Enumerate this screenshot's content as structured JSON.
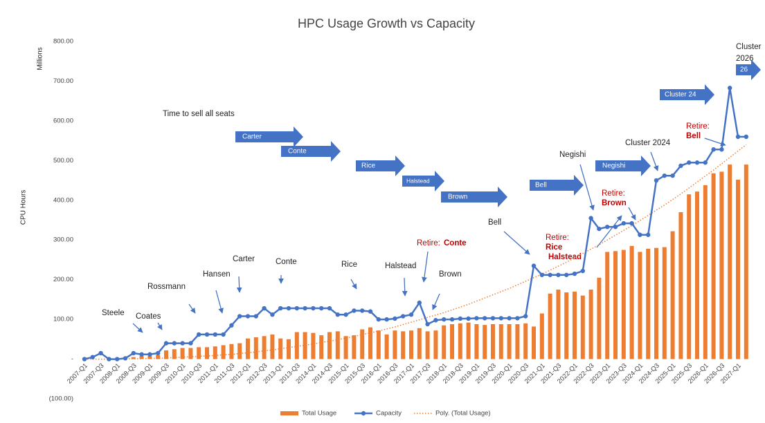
{
  "chart_data": {
    "type": "combo",
    "title": "HPC Usage Growth vs Capacity",
    "ylabel": "CPU Hours",
    "yunit": "Millions",
    "categories": [
      "2007-Q1",
      null,
      "2007-Q3",
      null,
      "2008-Q1",
      null,
      "2008-Q3",
      null,
      "2009-Q1",
      null,
      "2009-Q3",
      null,
      "2010-Q1",
      null,
      "2010-Q3",
      null,
      "2011-Q1",
      null,
      "2011-Q3",
      null,
      "2012-Q1",
      null,
      "2012-Q3",
      null,
      "2013-Q1",
      null,
      "2013-Q3",
      null,
      "2014-Q1",
      null,
      "2014-Q3",
      null,
      "2015-Q1",
      null,
      "2015-Q3",
      null,
      "2016-Q1",
      null,
      "2016-Q3",
      null,
      "2017-Q1",
      null,
      "2017-Q3",
      null,
      "2018-Q1",
      null,
      "2018-Q3",
      null,
      "2019-Q1",
      null,
      "2019-Q3",
      null,
      "2020-Q1",
      null,
      "2020-Q3",
      null,
      "2021-Q1",
      null,
      "2021-Q3",
      null,
      "2022-Q1",
      null,
      "2022-Q3",
      null,
      "2023-Q1",
      null,
      "2023-Q3",
      null,
      "2024-Q1",
      null,
      "2024-Q3",
      null,
      "2025-Q1",
      null,
      "2025-Q3",
      null,
      "2026-Q1",
      null,
      "2026-Q3",
      null,
      "2027-Q1",
      null
    ],
    "series": [
      {
        "name": "Total Usage",
        "kind": "bar",
        "color": "#ed7d31",
        "values": [
          0,
          0,
          0,
          0,
          0,
          0,
          5,
          8,
          8,
          10,
          22,
          25,
          28,
          28,
          30,
          30,
          32,
          35,
          38,
          40,
          52,
          55,
          58,
          62,
          52,
          50,
          68,
          68,
          66,
          60,
          68,
          70,
          58,
          60,
          75,
          80,
          72,
          62,
          72,
          70,
          72,
          78,
          70,
          72,
          85,
          88,
          90,
          92,
          88,
          86,
          88,
          88,
          88,
          88,
          90,
          82,
          115,
          165,
          175,
          168,
          170,
          160,
          175,
          205,
          270,
          272,
          275,
          285,
          270,
          278,
          280,
          282,
          322,
          370,
          415,
          422,
          438,
          468,
          472,
          490,
          452,
          490
        ]
      },
      {
        "name": "Capacity",
        "kind": "line",
        "color": "#4472c4",
        "values": [
          0,
          5,
          15,
          0,
          0,
          2,
          15,
          12,
          12,
          15,
          40,
          40,
          40,
          40,
          62,
          62,
          62,
          62,
          85,
          108,
          108,
          108,
          128,
          112,
          128,
          128,
          128,
          128,
          128,
          128,
          128,
          112,
          112,
          122,
          122,
          120,
          100,
          100,
          102,
          108,
          112,
          142,
          88,
          98,
          100,
          100,
          102,
          102,
          103,
          103,
          103,
          103,
          103,
          103,
          108,
          235,
          212,
          212,
          212,
          212,
          215,
          222,
          355,
          328,
          333,
          333,
          342,
          342,
          313,
          313,
          450,
          462,
          462,
          487,
          495,
          495,
          495,
          528,
          528,
          683,
          560,
          560
        ]
      },
      {
        "name": "Poly. (Total Usage)",
        "kind": "trend",
        "color": "#ed7d31",
        "values": [
          0,
          0,
          0,
          0,
          0,
          1,
          1,
          1,
          2,
          2,
          3,
          4,
          5,
          6,
          7,
          8,
          9,
          11,
          12,
          14,
          16,
          18,
          21,
          23,
          26,
          29,
          32,
          35,
          38,
          42,
          45,
          49,
          53,
          57,
          62,
          66,
          71,
          76,
          81,
          87,
          93,
          99,
          105,
          111,
          117,
          124,
          131,
          138,
          146,
          154,
          162,
          170,
          178,
          187,
          196,
          205,
          214,
          224,
          234,
          244,
          255,
          266,
          277,
          288,
          300,
          312,
          324,
          336,
          349,
          362,
          375,
          388,
          402,
          416,
          431,
          446,
          461,
          476,
          492,
          508,
          524,
          540
        ]
      }
    ],
    "ylim": [
      -100,
      800
    ],
    "yticks": [
      {
        "value": -100,
        "label": "(100.00)"
      },
      {
        "value": 0,
        "label": "-"
      },
      {
        "value": 100,
        "label": "100.00"
      },
      {
        "value": 200,
        "label": "200.00"
      },
      {
        "value": 300,
        "label": "300.00"
      },
      {
        "value": 400,
        "label": "400.00"
      },
      {
        "value": 500,
        "label": "500.00"
      },
      {
        "value": 600,
        "label": "600.00"
      },
      {
        "value": 700,
        "label": "700.00"
      },
      {
        "value": 800,
        "label": "800.00"
      }
    ],
    "grid": false,
    "legend": "bottom",
    "annotations": [
      "Time to sell all seats",
      "Steele",
      "Coates",
      "Rossmann",
      "Hansen",
      "Carter",
      "Conte",
      "Rice",
      "Halstead",
      "Brown",
      "Bell",
      "Negishi",
      "Cluster 2024"
    ],
    "retirements": [
      {
        "label": "Retire:",
        "systems": [
          "Conte"
        ]
      },
      {
        "label": "Retire:",
        "systems": [
          "Rice",
          "Halstead"
        ]
      },
      {
        "label": "Retire:",
        "systems": [
          "Brown"
        ]
      },
      {
        "label": "Retire:",
        "systems": [
          "Bell"
        ]
      }
    ],
    "seat_arrows": [
      "Carter",
      "Conte",
      "Rice",
      "Halstead",
      "Brown",
      "Bell",
      "Negishi",
      "Cluster 24",
      "26"
    ],
    "cluster_2026": [
      "Cluster",
      "2026"
    ]
  }
}
